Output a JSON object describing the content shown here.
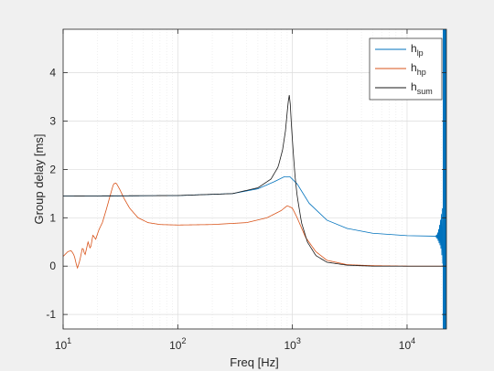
{
  "chart_data": {
    "type": "line",
    "title": "",
    "xlabel": "Freq [Hz]",
    "ylabel": "Group delay [ms]",
    "xscale": "log",
    "xlim": [
      10,
      22050
    ],
    "ylim": [
      -1.3,
      4.9
    ],
    "grid": "log minor on x, major on y",
    "legend_position": "top-right",
    "x_ticks": [
      {
        "value": 10,
        "base": "10",
        "exp": "1"
      },
      {
        "value": 100,
        "base": "10",
        "exp": "2"
      },
      {
        "value": 1000,
        "base": "10",
        "exp": "3"
      },
      {
        "value": 10000,
        "base": "10",
        "exp": "4"
      }
    ],
    "y_ticks": [
      {
        "value": -1,
        "label": "-1"
      },
      {
        "value": 0,
        "label": "0"
      },
      {
        "value": 1,
        "label": "1"
      },
      {
        "value": 2,
        "label": "2"
      },
      {
        "value": 3,
        "label": "3"
      },
      {
        "value": 4,
        "label": "4"
      }
    ],
    "series": [
      {
        "name": "h_lp",
        "legend_base": "h",
        "legend_sub": "lp",
        "color": "#0072bd",
        "x": [
          10,
          30,
          100,
          300,
          500,
          700,
          850,
          950,
          1100,
          1400,
          2000,
          3000,
          5000,
          10000,
          17000,
          18500
        ],
        "y": [
          1.45,
          1.45,
          1.46,
          1.5,
          1.6,
          1.75,
          1.85,
          1.85,
          1.7,
          1.3,
          0.95,
          0.78,
          0.68,
          0.63,
          0.62,
          0.62
        ],
        "noise_start": 17500,
        "noise_amp": [
          0.7,
          1.5
        ],
        "band_start": 20500
      },
      {
        "name": "h_hp",
        "legend_base": "h",
        "legend_sub": "hp",
        "color": "#d95319",
        "x": [
          10,
          11,
          11.8,
          12.5,
          13.3,
          14,
          14.8,
          15.5,
          16.5,
          17.3,
          18.2,
          19.2,
          20.5,
          22,
          24,
          26,
          27.5,
          29,
          31,
          34,
          38,
          45,
          55,
          70,
          100,
          200,
          400,
          600,
          800,
          900,
          1000,
          1100,
          1300,
          1600,
          2000,
          3000,
          5000,
          10000,
          22050
        ],
        "y": [
          0.2,
          0.3,
          0.32,
          0.22,
          -0.05,
          0.12,
          0.4,
          0.22,
          0.5,
          0.35,
          0.65,
          0.55,
          0.75,
          0.9,
          1.2,
          1.5,
          1.7,
          1.72,
          1.6,
          1.4,
          1.2,
          1.0,
          0.9,
          0.86,
          0.85,
          0.86,
          0.9,
          1.0,
          1.15,
          1.25,
          1.2,
          1.0,
          0.6,
          0.3,
          0.12,
          0.03,
          0.01,
          0.0,
          0.0
        ]
      },
      {
        "name": "h_sum",
        "legend_base": "h",
        "legend_sub": "sum",
        "color": "#1a1a1a",
        "x": [
          10,
          100,
          300,
          500,
          650,
          750,
          820,
          870,
          910,
          935,
          950,
          970,
          1000,
          1050,
          1100,
          1200,
          1350,
          1600,
          2000,
          3000,
          5000,
          10000,
          22050
        ],
        "y": [
          1.45,
          1.46,
          1.5,
          1.62,
          1.8,
          2.05,
          2.4,
          2.8,
          3.3,
          3.55,
          3.5,
          3.1,
          2.6,
          1.9,
          1.45,
          0.9,
          0.5,
          0.22,
          0.08,
          0.02,
          0.0,
          0.0,
          0.0
        ]
      }
    ]
  }
}
